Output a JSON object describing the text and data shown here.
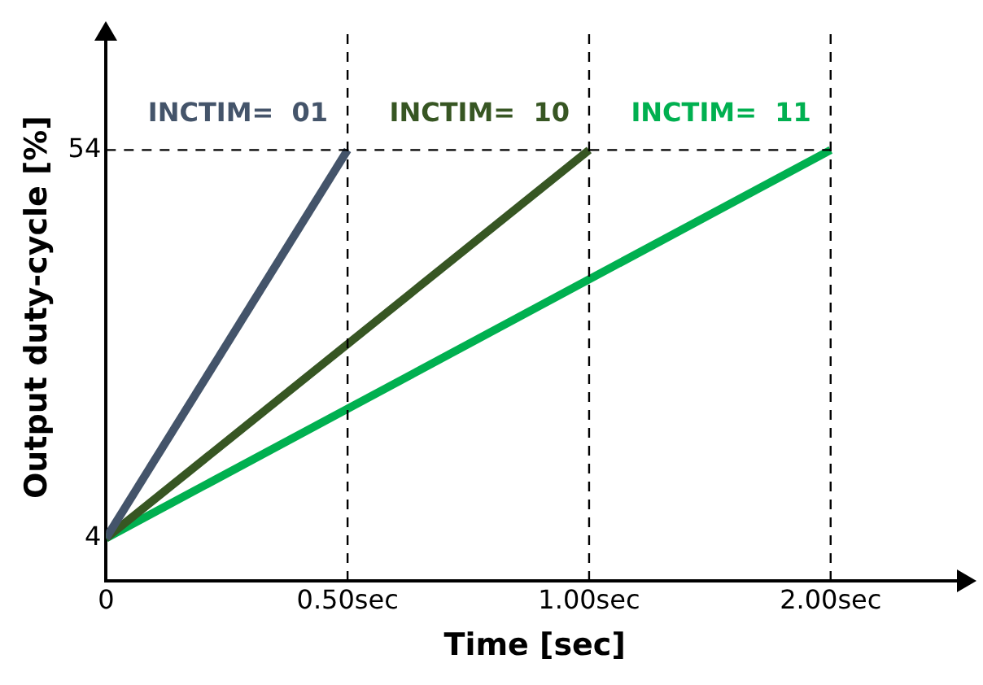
{
  "chart_data": {
    "type": "line",
    "xlabel": "Time [sec]",
    "ylabel": "Output duty-cycle [%]",
    "categories": [
      "0",
      "0.50sec",
      "1.00sec",
      "2.00sec"
    ],
    "series": [
      {
        "name": "INCTIM=  01",
        "color": "#44546a",
        "values": [
          4,
          54,
          null,
          null
        ]
      },
      {
        "name": "INCTIM=  10",
        "color": "#375623",
        "values": [
          4,
          null,
          54,
          null
        ]
      },
      {
        "name": "INCTIM=  11",
        "color": "#00b050",
        "values": [
          4,
          null,
          null,
          54
        ]
      }
    ],
    "ylim": [
      -1.5,
      69
    ],
    "yticks": [
      4,
      54
    ],
    "grid": false,
    "legend": false,
    "marker": "none",
    "line_style": "solid",
    "ref_lines": [
      {
        "axis": "y",
        "value": 54,
        "line_style": "dashed",
        "color": "#000000"
      },
      {
        "axis": "x",
        "value": "0.50sec",
        "line_style": "dashed",
        "color": "#000000"
      },
      {
        "axis": "x",
        "value": "1.00sec",
        "line_style": "dashed",
        "color": "#000000"
      },
      {
        "axis": "x",
        "value": "2.00sec",
        "line_style": "dashed",
        "color": "#000000"
      }
    ]
  }
}
